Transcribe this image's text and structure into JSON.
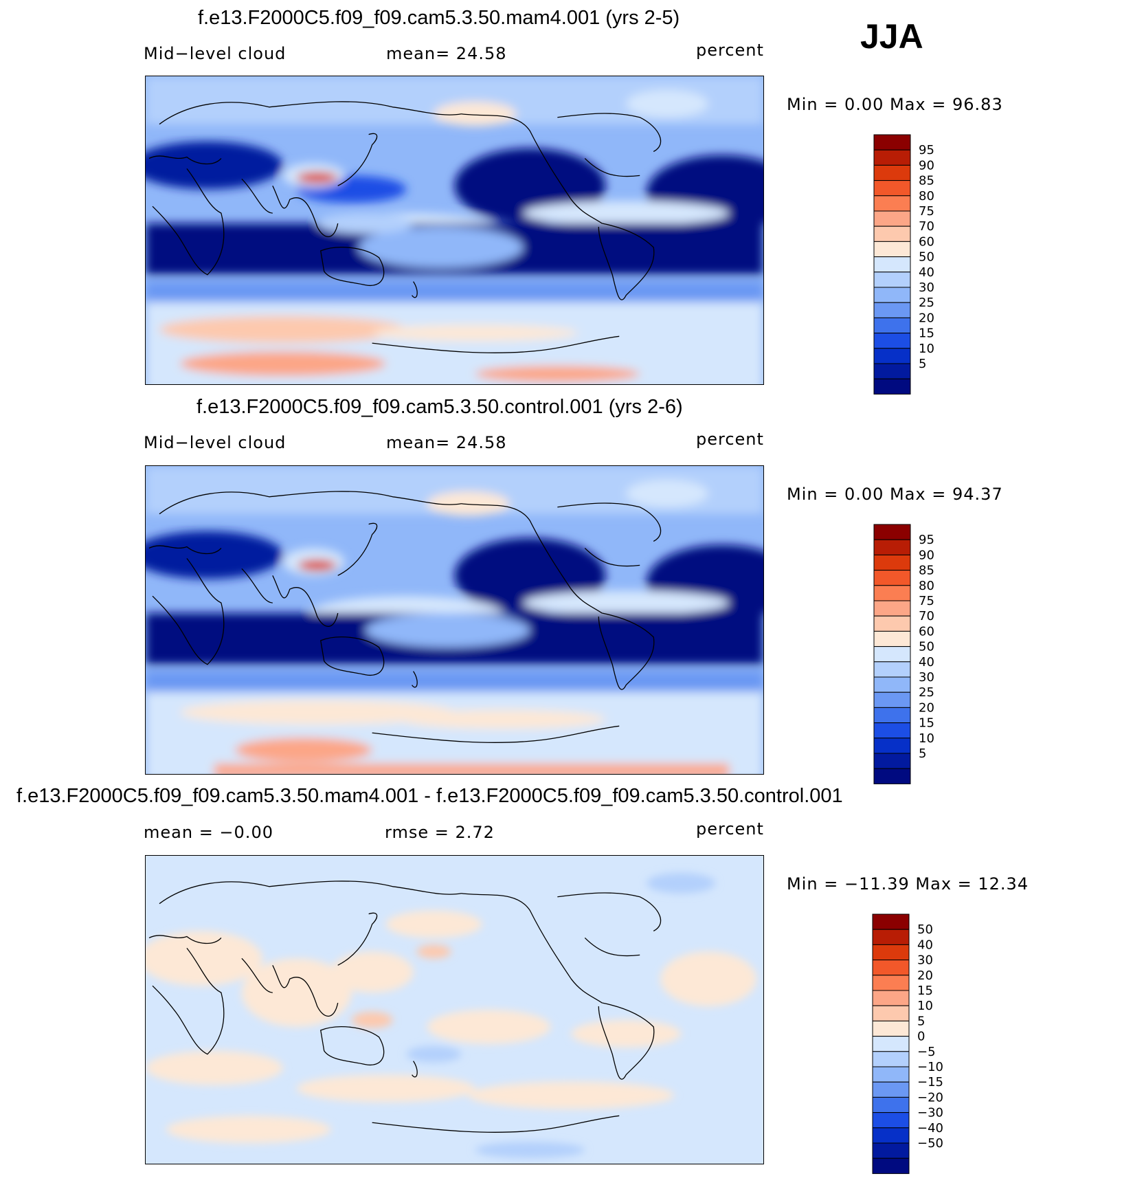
{
  "season": "JJA",
  "panels": [
    {
      "title": "f.e13.F2000C5.f09_f09.cam5.3.50.mam4.001 (yrs 2-5)",
      "left_label": "Mid−level  cloud",
      "center_label": "mean=   24.58",
      "right_label": "percent",
      "minmax": "Min  =      0.00  Max  =    96.83",
      "colorbar_labels": [
        "95",
        "90",
        "85",
        "80",
        "75",
        "70",
        "60",
        "50",
        "40",
        "30",
        "25",
        "20",
        "15",
        "10",
        "5"
      ],
      "colorbar_colors": [
        "#8b0000",
        "#b81d05",
        "#dc3a0c",
        "#f2582a",
        "#fb7e52",
        "#fca687",
        "#fdc9ae",
        "#fde8d6",
        "#d5e7fd",
        "#b3d0fc",
        "#90b7f9",
        "#6b98f3",
        "#3e72ec",
        "#1c4ee5",
        "#0630c8",
        "#021a9f",
        "#000a80"
      ]
    },
    {
      "title": "f.e13.F2000C5.f09_f09.cam5.3.50.control.001 (yrs 2-6)",
      "left_label": "Mid−level  cloud",
      "center_label": "mean=   24.58",
      "right_label": "percent",
      "minmax": "Min  =      0.00  Max  =    94.37",
      "colorbar_labels": [
        "95",
        "90",
        "85",
        "80",
        "75",
        "70",
        "60",
        "50",
        "40",
        "30",
        "25",
        "20",
        "15",
        "10",
        "5"
      ],
      "colorbar_colors": [
        "#8b0000",
        "#b81d05",
        "#dc3a0c",
        "#f2582a",
        "#fb7e52",
        "#fca687",
        "#fdc9ae",
        "#fde8d6",
        "#d5e7fd",
        "#b3d0fc",
        "#90b7f9",
        "#6b98f3",
        "#3e72ec",
        "#1c4ee5",
        "#0630c8",
        "#021a9f",
        "#000a80"
      ]
    },
    {
      "title": "f.e13.F2000C5.f09_f09.cam5.3.50.mam4.001 - f.e13.F2000C5.f09_f09.cam5.3.50.control.001",
      "left_label": "mean  =    −0.00",
      "center_label": "rmse  =     2.72",
      "right_label": "percent",
      "minmax": "Min  =  −11.39  Max  =    12.34",
      "colorbar_labels": [
        "50",
        "40",
        "30",
        "20",
        "15",
        "10",
        "5",
        "0",
        "−5",
        "−10",
        "−15",
        "−20",
        "−30",
        "−40",
        "−50"
      ],
      "colorbar_colors": [
        "#8b0000",
        "#b81d05",
        "#dc3a0c",
        "#f2582a",
        "#fb7e52",
        "#fca687",
        "#fdc9ae",
        "#fde8d6",
        "#d5e7fd",
        "#b3d0fc",
        "#90b7f9",
        "#6b98f3",
        "#3e72ec",
        "#1c4ee5",
        "#0630c8",
        "#021a9f",
        "#000a80"
      ]
    }
  ]
}
